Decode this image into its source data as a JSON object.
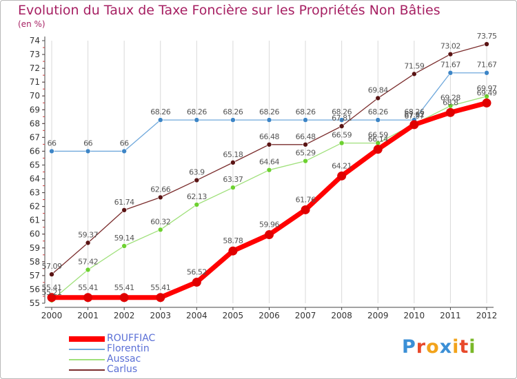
{
  "title": "Evolution du Taux de Taxe Foncière sur les Propriétés Non Bâties",
  "unit_label": "(en %)",
  "logo_text": "Proxiti",
  "colors": {
    "title": "#a61f62",
    "axis": "#444444",
    "grid": "#d9d9d9",
    "legend_text": "#5a6fd6",
    "logo": [
      "#3b8fd6",
      "#e8492b",
      "#f2a31b",
      "#3b8fd6",
      "#f2a31b",
      "#e8492b",
      "#7ab828"
    ]
  },
  "chart_data": {
    "type": "line",
    "title": "Evolution du Taux de Taxe Foncière sur les Propriétés Non Bâties",
    "ylabel": "(en %)",
    "xlabel": "",
    "ylim": [
      55,
      74
    ],
    "yticks": [
      55,
      56,
      57,
      58,
      59,
      60,
      61,
      62,
      63,
      64,
      65,
      66,
      67,
      68,
      69,
      70,
      71,
      72,
      73,
      74
    ],
    "grid": "vertical",
    "legend_position": "bottom-left",
    "x": [
      "2000",
      "2001",
      "2002",
      "2003",
      "2004",
      "2005",
      "2006",
      "2007",
      "2008",
      "2009",
      "2010",
      "2011",
      "2012"
    ],
    "series": [
      {
        "name": "ROUFFIAC",
        "color": "#ff0000",
        "marker_color": "#e00000",
        "values": [
          55.41,
          55.41,
          55.41,
          55.41,
          56.52,
          58.78,
          59.96,
          61.76,
          64.21,
          66.14,
          67.92,
          68.8,
          69.49
        ],
        "labels": [
          "55.41",
          "55.41",
          "55.41",
          "55.41",
          "56.52",
          "58.78",
          "59.96",
          "61.76",
          "64.21",
          "66.14",
          "67.92",
          "68.8",
          "69.49"
        ]
      },
      {
        "name": "Florentin",
        "color": "#6fa8dc",
        "marker_color": "#3d85c6",
        "values": [
          66,
          66,
          66,
          68.26,
          68.26,
          68.26,
          68.26,
          68.26,
          68.26,
          68.26,
          68.26,
          71.67,
          71.67
        ],
        "labels": [
          "66",
          "66",
          "66",
          "68.26",
          "68.26",
          "68.26",
          "68.26",
          "68.26",
          "68.26",
          "68.26",
          "68.26",
          "71.67",
          "71.67"
        ]
      },
      {
        "name": "Aussac",
        "color": "#9fe07a",
        "marker_color": "#6dd130",
        "values": [
          55.21,
          57.42,
          59.14,
          60.32,
          62.13,
          63.37,
          64.64,
          65.29,
          66.59,
          66.59,
          67.97,
          69.28,
          69.97
        ],
        "labels": [
          "55.21",
          "57.42",
          "59.14",
          "60.32",
          "62.13",
          "63.37",
          "64.64",
          "65.29",
          "66.59",
          "66.59",
          "67.97",
          "69.28",
          "69.97"
        ]
      },
      {
        "name": "Carlus",
        "color": "#7a2c2c",
        "marker_color": "#5a1414",
        "values": [
          57.09,
          59.37,
          61.74,
          62.66,
          63.9,
          65.18,
          66.48,
          66.48,
          67.81,
          69.84,
          71.59,
          73.02,
          73.75
        ],
        "labels": [
          "57.09",
          "59.37",
          "61.74",
          "62.66",
          "63.9",
          "65.18",
          "66.48",
          "66.48",
          "67.81",
          "69.84",
          "71.59",
          "73.02",
          "73.75"
        ]
      }
    ]
  }
}
